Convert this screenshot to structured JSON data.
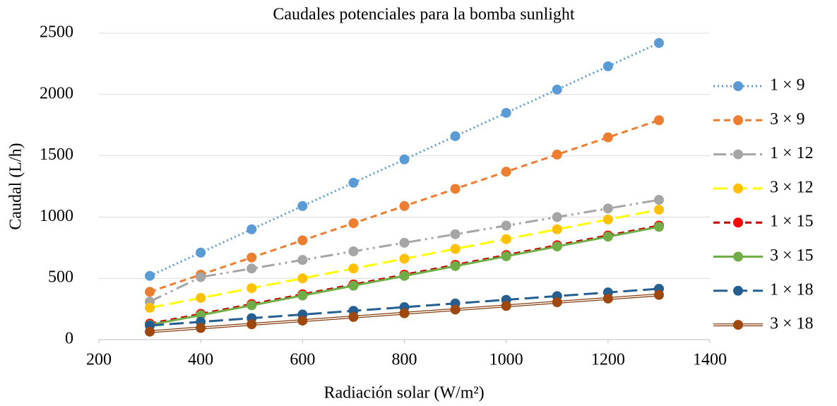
{
  "chart_data": {
    "type": "line",
    "title": "Caudales potenciales para la bomba sunlight",
    "x_label": "Radiación solar (W/m²)",
    "y_label": "Caudal (L/h)",
    "x": [
      300,
      400,
      500,
      600,
      700,
      800,
      900,
      1000,
      1100,
      1200,
      1300
    ],
    "series": [
      {
        "name": "1 × 9",
        "color": "#5b9bd5",
        "dash": "dot",
        "values": [
          520,
          710,
          900,
          1090,
          1280,
          1470,
          1660,
          1850,
          2040,
          2230,
          2420
        ]
      },
      {
        "name": "3 × 9",
        "color": "#ed7d31",
        "dash": "dash",
        "values": [
          390,
          530,
          670,
          810,
          950,
          1090,
          1230,
          1370,
          1510,
          1650,
          1790
        ]
      },
      {
        "name": "1 × 12",
        "color": "#a5a5a5",
        "dash": "dashdotdot",
        "values": [
          310,
          510,
          580,
          650,
          720,
          790,
          860,
          930,
          1000,
          1070,
          1140
        ]
      },
      {
        "name": "3 × 12",
        "color": "#ffff00",
        "marker_color": "#ffc000",
        "dash": "longdash",
        "values": [
          260,
          340,
          420,
          500,
          580,
          660,
          740,
          820,
          900,
          980,
          1060
        ]
      },
      {
        "name": "1 × 15",
        "color": "#c00000",
        "marker_color": "#ff0000",
        "dash": "dash",
        "values": [
          130,
          210,
          290,
          370,
          450,
          530,
          610,
          690,
          770,
          850,
          930
        ]
      },
      {
        "name": "3 × 15",
        "color": "#70ad47",
        "dash": "solid",
        "values": [
          120,
          200,
          280,
          360,
          440,
          520,
          600,
          680,
          760,
          840,
          920
        ]
      },
      {
        "name": "1 × 18",
        "color": "#255e91",
        "dash": "longdash",
        "values": [
          115,
          145,
          175,
          205,
          235,
          265,
          295,
          325,
          355,
          385,
          415
        ]
      },
      {
        "name": "3 × 18",
        "color": "#843c0c",
        "marker_color": "#9e480e",
        "dash": "double",
        "values": [
          65,
          95,
          125,
          155,
          185,
          215,
          245,
          275,
          305,
          335,
          365
        ]
      }
    ],
    "xlim": [
      200,
      1400
    ],
    "xticks": [
      200,
      400,
      600,
      800,
      1000,
      1200,
      1400
    ],
    "ylim": [
      0,
      2500
    ],
    "yticks": [
      0,
      500,
      1000,
      1500,
      2000,
      2500
    ],
    "grid": true,
    "legend": "right"
  }
}
